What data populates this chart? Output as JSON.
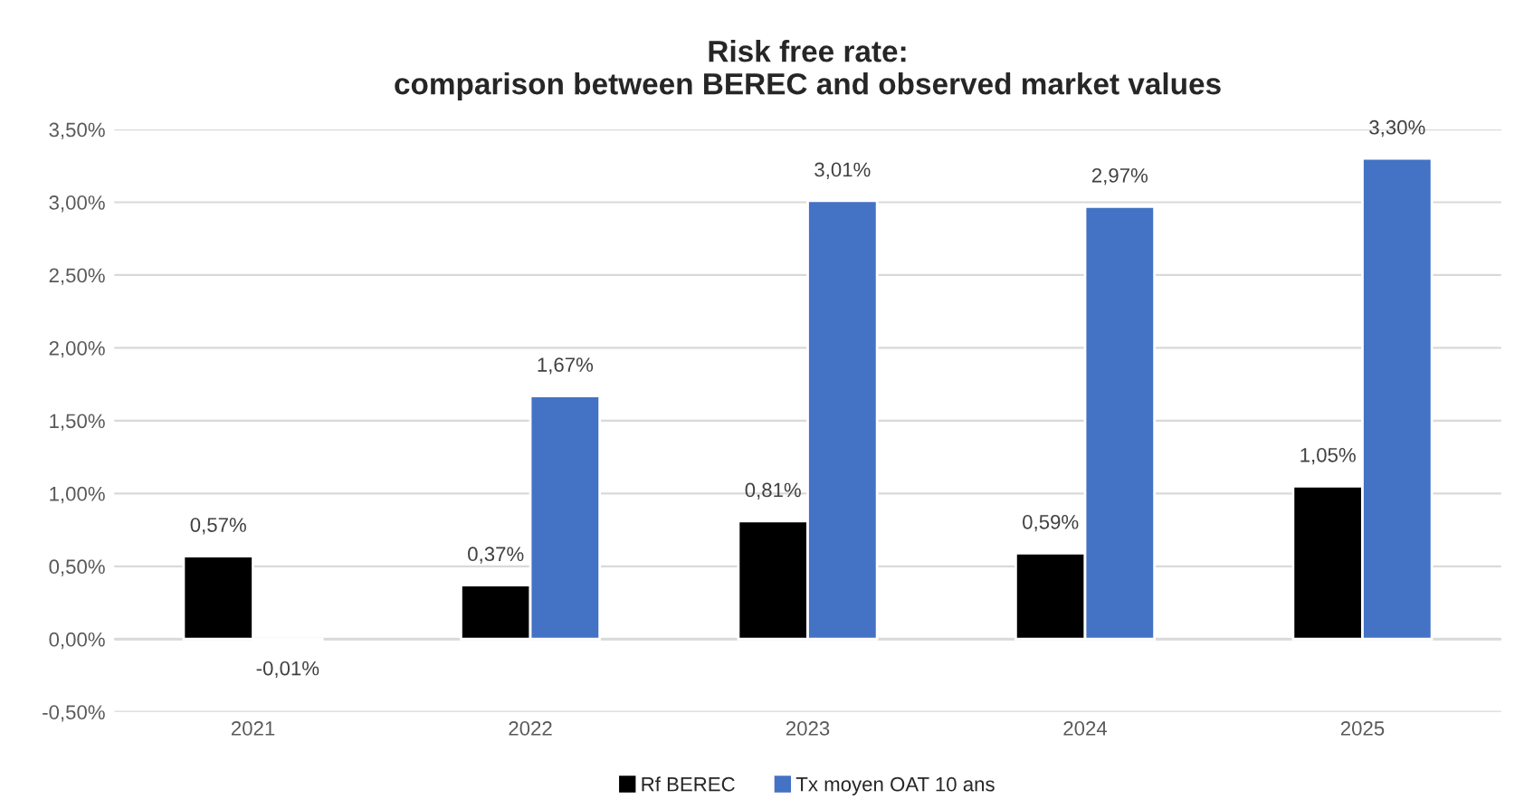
{
  "chart_data": {
    "type": "bar",
    "title": "Risk free rate:\ncomparison between BEREC and observed market values",
    "categories": [
      "2021",
      "2022",
      "2023",
      "2024",
      "2025"
    ],
    "series": [
      {
        "name": "Rf BEREC",
        "color": "#000000",
        "values": [
          0.57,
          0.37,
          0.81,
          0.59,
          1.05
        ],
        "value_labels": [
          "0,57%",
          "0,37%",
          "0,81%",
          "0,59%",
          "1,05%"
        ]
      },
      {
        "name": "Tx moyen OAT 10 ans",
        "color": "#4472c4",
        "values": [
          -0.01,
          1.67,
          3.01,
          2.97,
          3.3
        ],
        "value_labels": [
          "-0,01%",
          "1,67%",
          "3,01%",
          "2,97%",
          "3,30%"
        ]
      }
    ],
    "ylim": [
      -0.5,
      3.5
    ],
    "yticks": [
      {
        "value": -0.5,
        "label": "-0,50%"
      },
      {
        "value": 0,
        "label": "0,00%"
      },
      {
        "value": 0.5,
        "label": "0,50%"
      },
      {
        "value": 1,
        "label": "1,00%"
      },
      {
        "value": 1.5,
        "label": "1,50%"
      },
      {
        "value": 2,
        "label": "2,00%"
      },
      {
        "value": 2.5,
        "label": "2,50%"
      },
      {
        "value": 3,
        "label": "3,00%"
      },
      {
        "value": 3.5,
        "label": "3,50%"
      }
    ],
    "grid": "y",
    "legend": "bottom"
  }
}
